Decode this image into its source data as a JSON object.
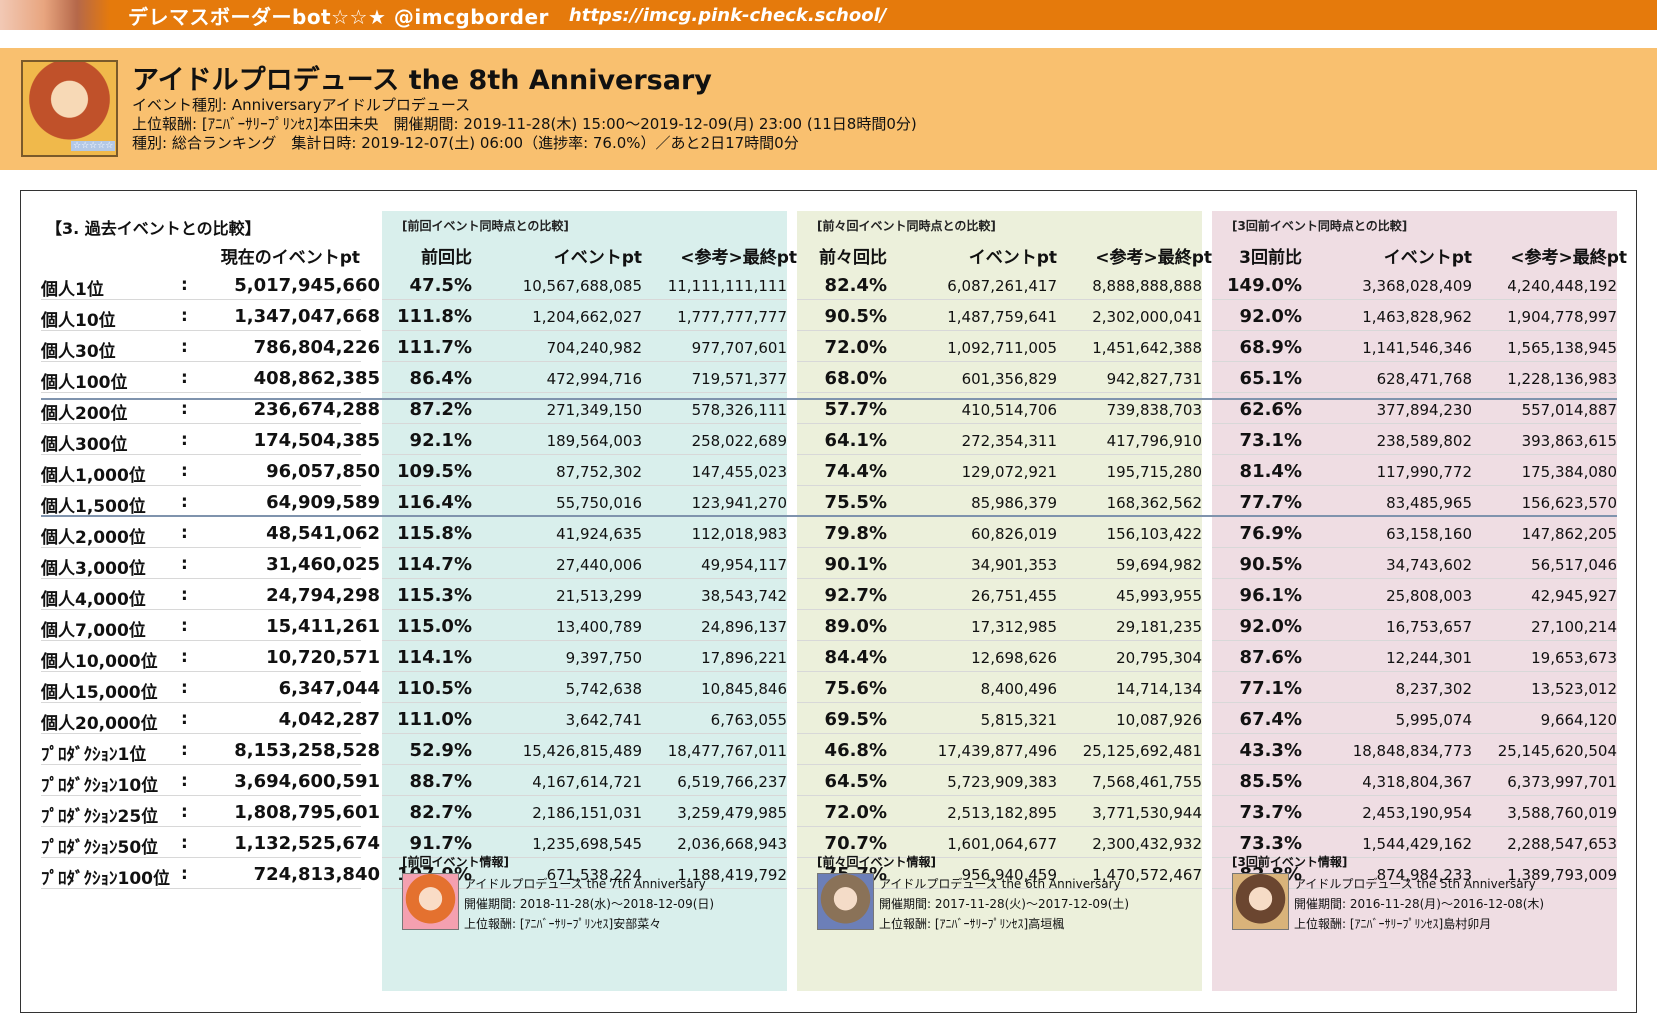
{
  "topbar": {
    "title": "デレマスボーダーbot☆☆★ @imcgborder",
    "url": "https://imcg.pink-check.school/"
  },
  "event": {
    "title": "アイドルプロデュース the 8th Anniversary",
    "line1": "イベント種別: Anniversaryアイドルプロデュース",
    "line2": "上位報酬: [ｱﾆﾊﾞｰｻﾘｰﾌﾟﾘﾝｾｽ]本田未央　開催期間: 2019-11-28(木) 15:00〜2019-12-09(月) 23:00 (11日8時間0分)",
    "line3": "種別: 総合ランキング　集計日時: 2019-12-07(土) 06:00（進捗率: 76.0%）／あと2日17時間0分",
    "icon_stars": "☆☆☆☆☆"
  },
  "table": {
    "section_title": "【3. 過去イベントとの比較】",
    "current_header": "現在のイベントpt",
    "groups": [
      {
        "title": "[前回イベント同時点との比較]",
        "ratio_header": "前回比",
        "pt_header": "イベントpt",
        "final_header": "<参考>最終pt"
      },
      {
        "title": "[前々回イベント同時点との比較]",
        "ratio_header": "前々回比",
        "pt_header": "イベントpt",
        "final_header": "<参考>最終pt"
      },
      {
        "title": "[3回前イベント同時点との比較]",
        "ratio_header": "3回前比",
        "pt_header": "イベントpt",
        "final_header": "<参考>最終pt"
      }
    ],
    "rows": [
      {
        "label": "個人1位",
        "colon": ":",
        "current": "5,017,945,660",
        "r1": "47.5%",
        "p1": "10,567,688,085",
        "f1": "11,111,111,111",
        "r2": "82.4%",
        "p2": "6,087,261,417",
        "f2": "8,888,888,888",
        "r3": "149.0%",
        "p3": "3,368,028,409",
        "f3": "4,240,448,192"
      },
      {
        "label": "個人10位",
        "colon": ":",
        "current": "1,347,047,668",
        "r1": "111.8%",
        "p1": "1,204,662,027",
        "f1": "1,777,777,777",
        "r2": "90.5%",
        "p2": "1,487,759,641",
        "f2": "2,302,000,041",
        "r3": "92.0%",
        "p3": "1,463,828,962",
        "f3": "1,904,778,997"
      },
      {
        "label": "個人30位",
        "colon": ":",
        "current": "786,804,226",
        "r1": "111.7%",
        "p1": "704,240,982",
        "f1": "977,707,601",
        "r2": "72.0%",
        "p2": "1,092,711,005",
        "f2": "1,451,642,388",
        "r3": "68.9%",
        "p3": "1,141,546,346",
        "f3": "1,565,138,945"
      },
      {
        "label": "個人100位",
        "colon": ":",
        "current": "408,862,385",
        "r1": "86.4%",
        "p1": "472,994,716",
        "f1": "719,571,377",
        "r2": "68.0%",
        "p2": "601,356,829",
        "f2": "942,827,731",
        "r3": "65.1%",
        "p3": "628,471,768",
        "f3": "1,228,136,983"
      },
      {
        "label": "個人200位",
        "colon": ":",
        "current": "236,674,288",
        "r1": "87.2%",
        "p1": "271,349,150",
        "f1": "578,326,111",
        "r2": "57.7%",
        "p2": "410,514,706",
        "f2": "739,838,703",
        "r3": "62.6%",
        "p3": "377,894,230",
        "f3": "557,014,887"
      },
      {
        "label": "個人300位",
        "colon": ":",
        "current": "174,504,385",
        "r1": "92.1%",
        "p1": "189,564,003",
        "f1": "258,022,689",
        "r2": "64.1%",
        "p2": "272,354,311",
        "f2": "417,796,910",
        "r3": "73.1%",
        "p3": "238,589,802",
        "f3": "393,863,615"
      },
      {
        "label": "個人1,000位",
        "colon": ":",
        "current": "96,057,850",
        "r1": "109.5%",
        "p1": "87,752,302",
        "f1": "147,455,023",
        "r2": "74.4%",
        "p2": "129,072,921",
        "f2": "195,715,280",
        "r3": "81.4%",
        "p3": "117,990,772",
        "f3": "175,384,080"
      },
      {
        "label": "個人1,500位",
        "colon": ":",
        "current": "64,909,589",
        "r1": "116.4%",
        "p1": "55,750,016",
        "f1": "123,941,270",
        "r2": "75.5%",
        "p2": "85,986,379",
        "f2": "168,362,562",
        "r3": "77.7%",
        "p3": "83,485,965",
        "f3": "156,623,570"
      },
      {
        "label": "個人2,000位",
        "colon": ":",
        "current": "48,541,062",
        "r1": "115.8%",
        "p1": "41,924,635",
        "f1": "112,018,983",
        "r2": "79.8%",
        "p2": "60,826,019",
        "f2": "156,103,422",
        "r3": "76.9%",
        "p3": "63,158,160",
        "f3": "147,862,205"
      },
      {
        "label": "個人3,000位",
        "colon": ":",
        "current": "31,460,025",
        "r1": "114.7%",
        "p1": "27,440,006",
        "f1": "49,954,117",
        "r2": "90.1%",
        "p2": "34,901,353",
        "f2": "59,694,982",
        "r3": "90.5%",
        "p3": "34,743,602",
        "f3": "56,517,046"
      },
      {
        "label": "個人4,000位",
        "colon": ":",
        "current": "24,794,298",
        "r1": "115.3%",
        "p1": "21,513,299",
        "f1": "38,543,742",
        "r2": "92.7%",
        "p2": "26,751,455",
        "f2": "45,993,955",
        "r3": "96.1%",
        "p3": "25,808,003",
        "f3": "42,945,927"
      },
      {
        "label": "個人7,000位",
        "colon": ":",
        "current": "15,411,261",
        "r1": "115.0%",
        "p1": "13,400,789",
        "f1": "24,896,137",
        "r2": "89.0%",
        "p2": "17,312,985",
        "f2": "29,181,235",
        "r3": "92.0%",
        "p3": "16,753,657",
        "f3": "27,100,214"
      },
      {
        "label": "個人10,000位",
        "colon": ":",
        "current": "10,720,571",
        "r1": "114.1%",
        "p1": "9,397,750",
        "f1": "17,896,221",
        "r2": "84.4%",
        "p2": "12,698,626",
        "f2": "20,795,304",
        "r3": "87.6%",
        "p3": "12,244,301",
        "f3": "19,653,673"
      },
      {
        "label": "個人15,000位",
        "colon": ":",
        "current": "6,347,044",
        "r1": "110.5%",
        "p1": "5,742,638",
        "f1": "10,845,846",
        "r2": "75.6%",
        "p2": "8,400,496",
        "f2": "14,714,134",
        "r3": "77.1%",
        "p3": "8,237,302",
        "f3": "13,523,012"
      },
      {
        "label": "個人20,000位",
        "colon": ":",
        "current": "4,042,287",
        "r1": "111.0%",
        "p1": "3,642,741",
        "f1": "6,763,055",
        "r2": "69.5%",
        "p2": "5,815,321",
        "f2": "10,087,926",
        "r3": "67.4%",
        "p3": "5,995,074",
        "f3": "9,664,120"
      },
      {
        "label": "ﾌﾟﾛﾀﾞｸｼｮﾝ1位",
        "colon": ":",
        "current": "8,153,258,528",
        "r1": "52.9%",
        "p1": "15,426,815,489",
        "f1": "18,477,767,011",
        "r2": "46.8%",
        "p2": "17,439,877,496",
        "f2": "25,125,692,481",
        "r3": "43.3%",
        "p3": "18,848,834,773",
        "f3": "25,145,620,504"
      },
      {
        "label": "ﾌﾟﾛﾀﾞｸｼｮﾝ10位",
        "colon": ":",
        "current": "3,694,600,591",
        "r1": "88.7%",
        "p1": "4,167,614,721",
        "f1": "6,519,766,237",
        "r2": "64.5%",
        "p2": "5,723,909,383",
        "f2": "7,568,461,755",
        "r3": "85.5%",
        "p3": "4,318,804,367",
        "f3": "6,373,997,701"
      },
      {
        "label": "ﾌﾟﾛﾀﾞｸｼｮﾝ25位",
        "colon": ":",
        "current": "1,808,795,601",
        "r1": "82.7%",
        "p1": "2,186,151,031",
        "f1": "3,259,479,985",
        "r2": "72.0%",
        "p2": "2,513,182,895",
        "f2": "3,771,530,944",
        "r3": "73.7%",
        "p3": "2,453,190,954",
        "f3": "3,588,760,019"
      },
      {
        "label": "ﾌﾟﾛﾀﾞｸｼｮﾝ50位",
        "colon": ":",
        "current": "1,132,525,674",
        "r1": "91.7%",
        "p1": "1,235,698,545",
        "f1": "2,036,668,943",
        "r2": "70.7%",
        "p2": "1,601,064,677",
        "f2": "2,300,432,932",
        "r3": "73.3%",
        "p3": "1,544,429,162",
        "f3": "2,288,547,653"
      },
      {
        "label": "ﾌﾟﾛﾀﾞｸｼｮﾝ100位",
        "colon": ":",
        "current": "724,813,840",
        "r1": "107.9%",
        "p1": "671,538,224",
        "f1": "1,188,419,792",
        "r2": "75.7%",
        "p2": "956,940,459",
        "f2": "1,470,572,467",
        "r3": "82.8%",
        "p3": "874,984,233",
        "f3": "1,389,793,009"
      }
    ]
  },
  "past_events": [
    {
      "title": "[前回イベント情報]",
      "name": "アイドルプロデュース the 7th Anniversary",
      "period": "開催期間: 2018-11-28(水)〜2018-12-09(日)",
      "reward": "上位報酬: [ｱﾆﾊﾞｰｻﾘｰﾌﾟﾘﾝｾｽ]安部菜々"
    },
    {
      "title": "[前々回イベント情報]",
      "name": "アイドルプロデュース the 6th Anniversary",
      "period": "開催期間: 2017-11-28(火)〜2017-12-09(土)",
      "reward": "上位報酬: [ｱﾆﾊﾞｰｻﾘｰﾌﾟﾘﾝｾｽ]高垣楓"
    },
    {
      "title": "[3回前イベント情報]",
      "name": "アイドルプロデュース the 5th Anniversary",
      "period": "開催期間: 2016-11-28(月)〜2016-12-08(木)",
      "reward": "上位報酬: [ｱﾆﾊﾞｰｻﾘｰﾌﾟﾘﾝｾｽ]島村卯月"
    }
  ]
}
